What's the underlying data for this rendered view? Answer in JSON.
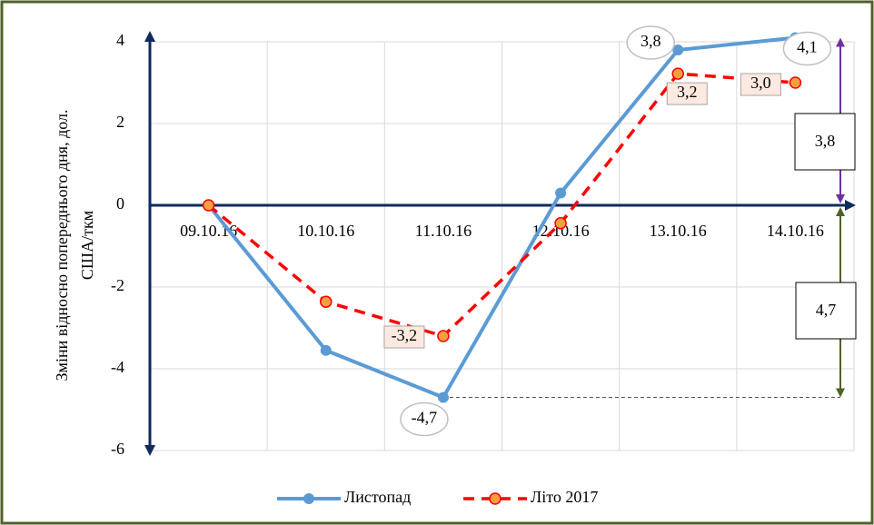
{
  "chart_data": {
    "type": "line",
    "ylabel": [
      "Зміни відносно попереднього дня, дол.",
      "США/ткм"
    ],
    "categories": [
      "09.10.16",
      "10.10.16",
      "11.10.16",
      "12.10.16",
      "13.10.16",
      "14.10.16"
    ],
    "series": [
      {
        "name": "Листопад",
        "color": "#5b9bd5",
        "values": [
          0,
          -3.55,
          -4.7,
          0.3,
          3.8,
          4.1
        ],
        "value_labels": [
          null,
          null,
          "-4,7",
          null,
          "3,8",
          "4,1"
        ]
      },
      {
        "name": "Літо 2017",
        "color": "#ff0000",
        "values": [
          0,
          -2.36,
          -3.2,
          -0.44,
          3.22,
          3.0
        ],
        "value_labels": [
          null,
          null,
          "-3,2",
          null,
          "3,2",
          "3,0"
        ]
      }
    ],
    "ylim": [
      -6,
      4
    ],
    "yticks": [
      -6,
      -4,
      -2,
      0,
      2,
      4
    ],
    "grid": true,
    "legend": "bottom",
    "annotations": [
      {
        "label": "3,8"
      },
      {
        "label": "4,7"
      }
    ]
  }
}
